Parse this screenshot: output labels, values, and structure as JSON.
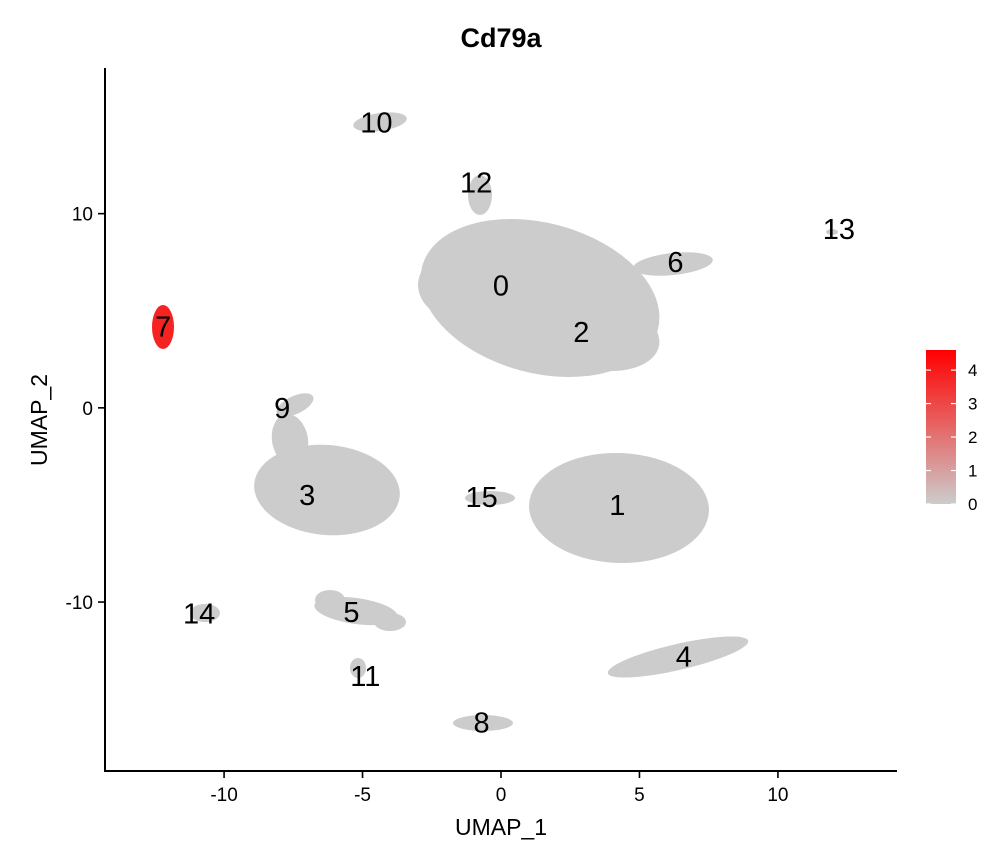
{
  "chart_data": {
    "type": "scatter",
    "title": "Cd79a",
    "xlabel": "UMAP_1",
    "ylabel": "UMAP_2",
    "xlim": [
      -14.3,
      14.3
    ],
    "ylim": [
      -18.7,
      17.5
    ],
    "xticks": [
      -10,
      -5,
      0,
      5,
      10
    ],
    "yticks": [
      -10,
      0,
      10
    ],
    "grid": false,
    "legend_position": "right",
    "color_scale": {
      "low_color": "#cccccc",
      "high_color": "#ff0000",
      "min": 0,
      "max": 4.6,
      "ticks": [
        0,
        1,
        2,
        3,
        4
      ]
    },
    "clusters": [
      {
        "label": "0",
        "x": 0.0,
        "y": 6.3,
        "expression": 0.0
      },
      {
        "label": "1",
        "x": 4.2,
        "y": -5.0,
        "expression": 0.0
      },
      {
        "label": "2",
        "x": 2.9,
        "y": 3.9,
        "expression": 0.0
      },
      {
        "label": "3",
        "x": -7.0,
        "y": -4.5,
        "expression": 0.0
      },
      {
        "label": "4",
        "x": 6.6,
        "y": -12.8,
        "expression": 0.0
      },
      {
        "label": "5",
        "x": -5.4,
        "y": -10.5,
        "expression": 0.0
      },
      {
        "label": "6",
        "x": 6.3,
        "y": 7.5,
        "expression": 0.0
      },
      {
        "label": "7",
        "x": -12.2,
        "y": 4.2,
        "expression": 3.8
      },
      {
        "label": "8",
        "x": -0.7,
        "y": -16.2,
        "expression": 0.0
      },
      {
        "label": "9",
        "x": -7.9,
        "y": 0.0,
        "expression": 0.0
      },
      {
        "label": "10",
        "x": -4.5,
        "y": 14.7,
        "expression": 0.0
      },
      {
        "label": "11",
        "x": -4.9,
        "y": -13.8,
        "expression": 0.0
      },
      {
        "label": "12",
        "x": -0.9,
        "y": 11.6,
        "expression": 0.0
      },
      {
        "label": "13",
        "x": 12.2,
        "y": 9.2,
        "expression": 0.0
      },
      {
        "label": "14",
        "x": -10.9,
        "y": -10.6,
        "expression": 0.0
      },
      {
        "label": "15",
        "x": -0.7,
        "y": -4.6,
        "expression": 0.0
      }
    ]
  }
}
